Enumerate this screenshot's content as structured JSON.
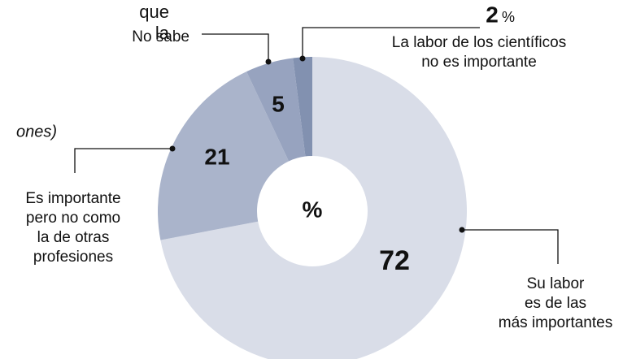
{
  "fragments": [
    "que",
    "la",
    "ones)"
  ],
  "chart_data": {
    "type": "donut",
    "unit": "%",
    "categories": [
      [
        "Su labor",
        "es de las",
        "más importantes"
      ],
      [
        "Es importante",
        "pero no como",
        "la de otras",
        "profesiones"
      ],
      [
        "No sabe"
      ],
      [
        "La labor de los científicos",
        "no es importante"
      ]
    ],
    "values": [
      72,
      21,
      5,
      2
    ],
    "colors": [
      "#d9dde8",
      "#aab4cb",
      "#97a3bf",
      "#8291b0"
    ]
  }
}
